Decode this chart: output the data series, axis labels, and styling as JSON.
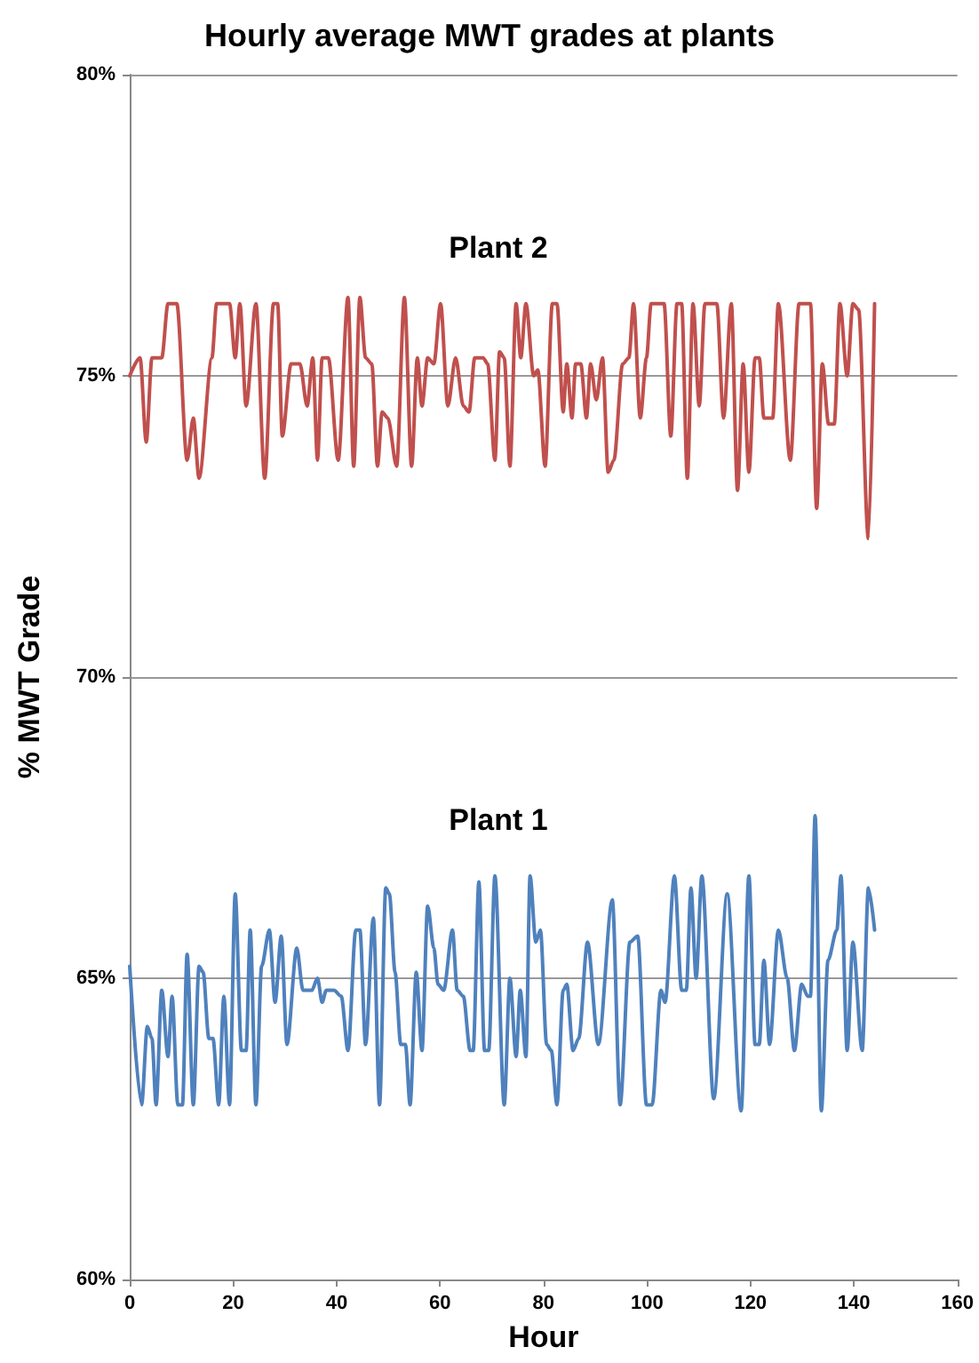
{
  "chart_data": {
    "type": "line",
    "title": "Hourly average MWT grades at plants",
    "xlabel": "Hour",
    "ylabel": "% MWT Grade",
    "xlim": [
      0,
      160
    ],
    "xticks": [
      0,
      20,
      40,
      60,
      80,
      100,
      120,
      140,
      160
    ],
    "ylim": [
      60,
      80
    ],
    "yticks": [
      {
        "value": 60,
        "label": "60%"
      },
      {
        "value": 65,
        "label": "65%"
      },
      {
        "value": 70,
        "label": "70%"
      },
      {
        "value": 75,
        "label": "75%"
      },
      {
        "value": 80,
        "label": "80%"
      }
    ],
    "grid": "y",
    "legend": false,
    "marker": "none",
    "line_style": "solid",
    "series": [
      {
        "name": "Plant 2",
        "color": "#c0504d",
        "x": [
          0,
          2.0,
          3.2,
          4.3,
          6.2,
          7.4,
          9.1,
          11.1,
          12.3,
          13.4,
          15.9,
          16.8,
          19.3,
          20.4,
          21.3,
          22.5,
          24.4,
          26.1,
          27.8,
          28.6,
          29.5,
          31.2,
          32.9,
          34.3,
          35.4,
          36.3,
          37.2,
          38.4,
          40.3,
          42.2,
          43.3,
          44.5,
          45.6,
          46.8,
          47.9,
          48.8,
          49.9,
          51.6,
          53.1,
          54.5,
          55.6,
          56.5,
          57.6,
          58.8,
          60.1,
          61.5,
          63.0,
          64.5,
          65.6,
          66.7,
          68.3,
          69.2,
          70.6,
          71.5,
          72.4,
          73.5,
          74.7,
          75.6,
          76.6,
          78.1,
          78.9,
          80.3,
          81.7,
          82.6,
          83.8,
          84.5,
          85.5,
          86.2,
          87.2,
          88.3,
          89.1,
          90.2,
          91.4,
          92.5,
          93.6,
          95.3,
          96.5,
          97.4,
          98.7,
          99.9,
          100.8,
          103.3,
          104.6,
          105.8,
          106.7,
          107.8,
          108.9,
          110.1,
          111.2,
          113.5,
          114.8,
          116.3,
          117.5,
          118.6,
          119.7,
          120.9,
          121.7,
          122.6,
          124.3,
          125.4,
          127.7,
          129.4,
          131.6,
          132.8,
          133.9,
          135.1,
          136.2,
          137.3,
          138.7,
          139.8,
          140.9,
          142.8,
          144.0
        ],
        "values": [
          75.0,
          75.3,
          73.9,
          75.3,
          75.3,
          76.2,
          76.2,
          73.6,
          74.3,
          73.3,
          75.3,
          76.2,
          76.2,
          75.3,
          76.2,
          74.5,
          76.2,
          73.3,
          76.2,
          76.2,
          74.0,
          75.2,
          75.2,
          74.5,
          75.3,
          73.6,
          75.3,
          75.3,
          73.6,
          76.3,
          73.5,
          76.3,
          75.3,
          75.2,
          73.5,
          74.4,
          74.3,
          73.5,
          76.3,
          73.5,
          75.3,
          74.5,
          75.3,
          75.2,
          76.2,
          74.5,
          75.3,
          74.5,
          74.4,
          75.3,
          75.3,
          75.2,
          73.6,
          75.4,
          75.3,
          73.5,
          76.2,
          75.3,
          76.2,
          75.0,
          75.1,
          73.5,
          76.2,
          76.2,
          74.4,
          75.2,
          74.3,
          75.2,
          75.2,
          74.3,
          75.2,
          74.6,
          75.3,
          73.4,
          73.6,
          75.2,
          75.3,
          76.2,
          74.3,
          75.3,
          76.2,
          76.2,
          74.0,
          76.2,
          76.2,
          73.3,
          76.2,
          74.5,
          76.2,
          76.2,
          74.3,
          76.2,
          73.1,
          75.2,
          73.4,
          75.3,
          75.3,
          74.3,
          74.3,
          76.2,
          73.6,
          76.2,
          76.2,
          72.8,
          75.2,
          74.2,
          74.2,
          76.2,
          75.0,
          76.2,
          76.1,
          72.3,
          76.2
        ]
      },
      {
        "name": "Plant 1",
        "color": "#4f81bd",
        "x": [
          0,
          2.3,
          3.4,
          4.3,
          5.1,
          6.2,
          7.4,
          8.2,
          9.3,
          10.2,
          11.1,
          12.3,
          13.4,
          14.2,
          15.3,
          16.1,
          17.2,
          18.2,
          19.3,
          20.4,
          21.6,
          22.5,
          23.3,
          24.4,
          25.5,
          27.0,
          28.1,
          29.3,
          30.4,
          32.3,
          33.5,
          35.2,
          36.3,
          37.2,
          38.0,
          38.8,
          39.5,
          40.9,
          42.2,
          43.7,
          44.5,
          45.6,
          47.1,
          48.3,
          49.5,
          50.2,
          51.3,
          52.4,
          53.3,
          54.2,
          55.4,
          56.5,
          57.6,
          58.8,
          59.6,
          60.7,
          62.4,
          63.3,
          64.5,
          65.8,
          66.4,
          67.5,
          68.6,
          69.4,
          70.6,
          72.4,
          73.5,
          74.7,
          75.5,
          76.6,
          77.4,
          78.5,
          79.4,
          80.6,
          81.5,
          82.6,
          83.8,
          84.5,
          85.7,
          86.8,
          88.5,
          90.6,
          93.3,
          94.8,
          96.7,
          98.2,
          99.9,
          101.0,
          102.7,
          103.5,
          105.3,
          106.7,
          107.6,
          108.5,
          109.5,
          110.6,
          112.9,
          115.5,
          118.2,
          119.7,
          120.9,
          121.7,
          122.6,
          123.7,
          125.4,
          127.1,
          128.5,
          129.9,
          131.1,
          131.6,
          132.5,
          133.7,
          135.0,
          136.7,
          137.5,
          138.7,
          139.8,
          141.6,
          142.8,
          144.0
        ],
        "values": [
          65.2,
          62.9,
          64.2,
          64.0,
          62.9,
          64.8,
          63.7,
          64.7,
          62.9,
          62.9,
          65.4,
          62.9,
          65.2,
          65.1,
          64.0,
          64.0,
          62.9,
          64.7,
          62.9,
          66.4,
          63.8,
          63.8,
          65.8,
          62.9,
          65.2,
          65.8,
          64.6,
          65.7,
          63.9,
          65.5,
          64.8,
          64.8,
          65.0,
          64.6,
          64.8,
          64.8,
          64.8,
          64.7,
          63.8,
          65.8,
          65.8,
          63.9,
          66.0,
          62.9,
          66.5,
          66.4,
          65.1,
          63.9,
          63.9,
          62.9,
          65.1,
          63.8,
          66.2,
          65.5,
          64.9,
          64.8,
          65.8,
          64.8,
          64.7,
          63.8,
          63.8,
          66.6,
          63.8,
          63.8,
          66.7,
          62.9,
          65.0,
          63.7,
          64.8,
          63.7,
          66.7,
          65.6,
          65.8,
          63.9,
          63.8,
          62.9,
          64.8,
          64.9,
          63.8,
          64.0,
          65.6,
          63.9,
          66.3,
          62.9,
          65.6,
          65.7,
          62.9,
          62.9,
          64.8,
          64.6,
          66.7,
          64.8,
          64.8,
          66.5,
          65.0,
          66.7,
          63.0,
          66.4,
          62.8,
          66.7,
          63.9,
          63.9,
          65.3,
          63.9,
          65.8,
          65.0,
          63.8,
          64.9,
          64.7,
          64.7,
          67.7,
          62.8,
          65.3,
          65.8,
          66.7,
          63.8,
          65.6,
          63.8,
          66.5,
          65.8
        ]
      }
    ]
  }
}
